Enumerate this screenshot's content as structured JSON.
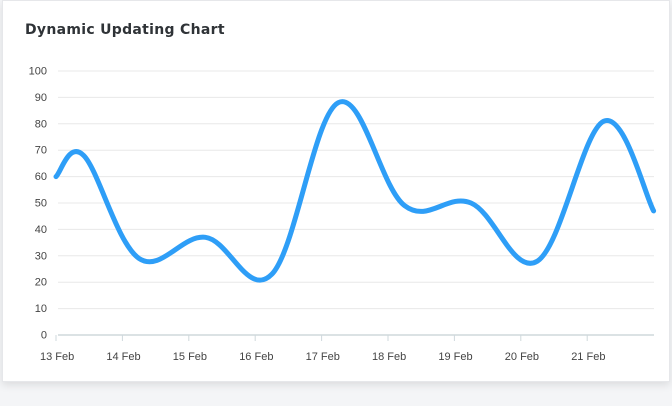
{
  "chart_data": {
    "type": "line",
    "title": "Dynamic Updating Chart",
    "xlabel": "",
    "ylabel": "",
    "ylim": [
      0,
      100
    ],
    "y_ticks": [
      0,
      10,
      20,
      30,
      40,
      50,
      60,
      70,
      80,
      90,
      100
    ],
    "x_tick_labels": [
      "13 Feb",
      "14 Feb",
      "15 Feb",
      "16 Feb",
      "17 Feb",
      "18 Feb",
      "19 Feb",
      "20 Feb",
      "21 Feb"
    ],
    "x_range": [
      "13 Feb 00:00",
      "22 Feb 00:00"
    ],
    "grid": true,
    "legend": "none",
    "series": [
      {
        "color": "#2e9ef7",
        "points": [
          [
            "13 Feb 00:00",
            60
          ],
          [
            "13 Feb 10:00",
            68
          ],
          [
            "14 Feb 06:00",
            29
          ],
          [
            "15 Feb 06:00",
            37
          ],
          [
            "16 Feb 06:00",
            23
          ],
          [
            "17 Feb 06:00",
            88
          ],
          [
            "18 Feb 06:00",
            49
          ],
          [
            "19 Feb 06:00",
            50
          ],
          [
            "20 Feb 06:00",
            28
          ],
          [
            "21 Feb 06:00",
            81
          ],
          [
            "22 Feb 00:00",
            47
          ]
        ]
      }
    ]
  },
  "colors": {
    "line": "#2e9ef7",
    "grid": "#e8e8e8",
    "axis": "#cfd8dc",
    "text": "#444444",
    "title": "#2f3337"
  }
}
